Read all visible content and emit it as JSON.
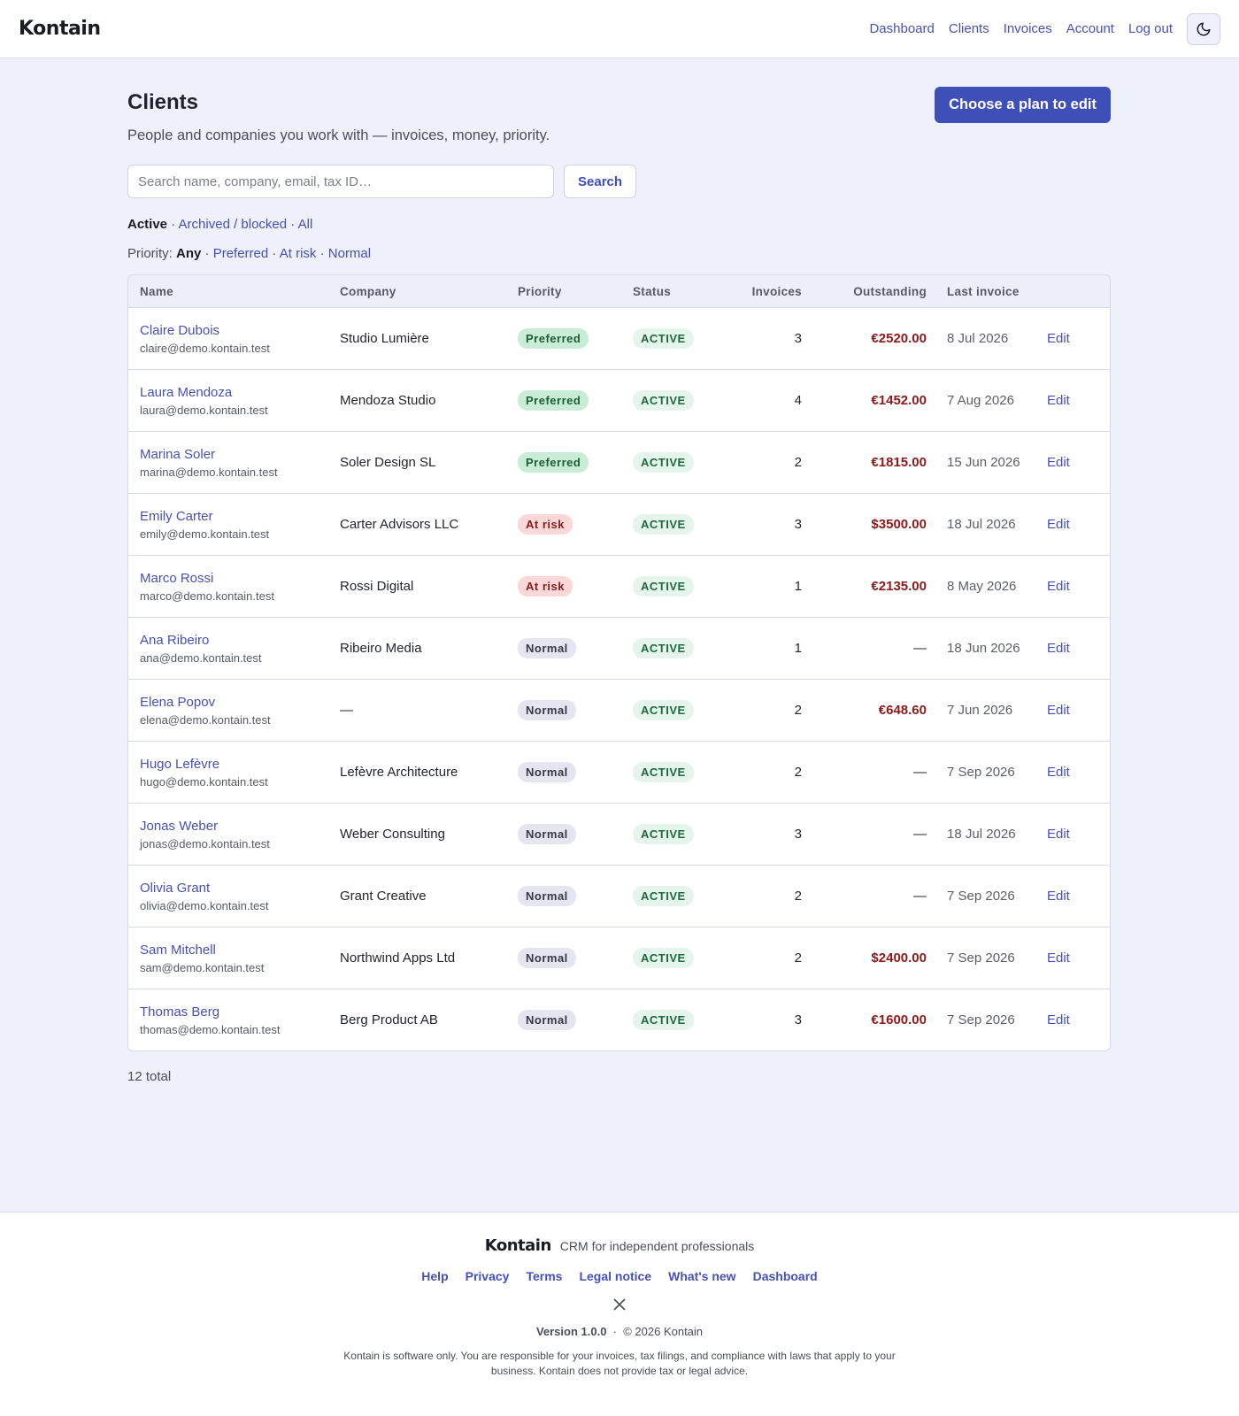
{
  "header": {
    "brand": "Kontain",
    "nav": [
      "Dashboard",
      "Clients",
      "Invoices",
      "Account",
      "Log out"
    ]
  },
  "page": {
    "title": "Clients",
    "subtitle": "People and companies you work with — invoices, money, priority.",
    "cta": "Choose a plan to edit",
    "search_placeholder": "Search name, company, email, tax ID…",
    "search_button": "Search",
    "status_filters": [
      "Active",
      "Archived / blocked",
      "All"
    ],
    "priority_label": "Priority:",
    "priority_filters": [
      "Any",
      "Preferred",
      "At risk",
      "Normal"
    ]
  },
  "table": {
    "columns": [
      "Name",
      "Company",
      "Priority",
      "Status",
      "Invoices",
      "Outstanding",
      "Last invoice"
    ],
    "rows": [
      {
        "name": "Claire Dubois",
        "email": "claire@demo.kontain.test",
        "company": "Studio Lumière",
        "priority": "Preferred",
        "status": "ACTIVE",
        "invoices": 3,
        "outstanding": "€2520.00",
        "last_invoice": "8 Jul 2026",
        "action": "Edit"
      },
      {
        "name": "Laura Mendoza",
        "email": "laura@demo.kontain.test",
        "company": "Mendoza Studio",
        "priority": "Preferred",
        "status": "ACTIVE",
        "invoices": 4,
        "outstanding": "€1452.00",
        "last_invoice": "7 Aug 2026",
        "action": "Edit"
      },
      {
        "name": "Marina Soler",
        "email": "marina@demo.kontain.test",
        "company": "Soler Design SL",
        "priority": "Preferred",
        "status": "ACTIVE",
        "invoices": 2,
        "outstanding": "€1815.00",
        "last_invoice": "15 Jun 2026",
        "action": "Edit"
      },
      {
        "name": "Emily Carter",
        "email": "emily@demo.kontain.test",
        "company": "Carter Advisors LLC",
        "priority": "At risk",
        "status": "ACTIVE",
        "invoices": 3,
        "outstanding": "$3500.00",
        "last_invoice": "18 Jul 2026",
        "action": "Edit"
      },
      {
        "name": "Marco Rossi",
        "email": "marco@demo.kontain.test",
        "company": "Rossi Digital",
        "priority": "At risk",
        "status": "ACTIVE",
        "invoices": 1,
        "outstanding": "€2135.00",
        "last_invoice": "8 May 2026",
        "action": "Edit"
      },
      {
        "name": "Ana Ribeiro",
        "email": "ana@demo.kontain.test",
        "company": "Ribeiro Media",
        "priority": "Normal",
        "status": "ACTIVE",
        "invoices": 1,
        "outstanding": "—",
        "last_invoice": "18 Jun 2026",
        "action": "Edit"
      },
      {
        "name": "Elena Popov",
        "email": "elena@demo.kontain.test",
        "company": "—",
        "priority": "Normal",
        "status": "ACTIVE",
        "invoices": 2,
        "outstanding": "€648.60",
        "last_invoice": "7 Jun 2026",
        "action": "Edit"
      },
      {
        "name": "Hugo Lefèvre",
        "email": "hugo@demo.kontain.test",
        "company": "Lefèvre Architecture",
        "priority": "Normal",
        "status": "ACTIVE",
        "invoices": 2,
        "outstanding": "—",
        "last_invoice": "7 Sep 2026",
        "action": "Edit"
      },
      {
        "name": "Jonas Weber",
        "email": "jonas@demo.kontain.test",
        "company": "Weber Consulting",
        "priority": "Normal",
        "status": "ACTIVE",
        "invoices": 3,
        "outstanding": "—",
        "last_invoice": "18 Jul 2026",
        "action": "Edit"
      },
      {
        "name": "Olivia Grant",
        "email": "olivia@demo.kontain.test",
        "company": "Grant Creative",
        "priority": "Normal",
        "status": "ACTIVE",
        "invoices": 2,
        "outstanding": "—",
        "last_invoice": "7 Sep 2026",
        "action": "Edit"
      },
      {
        "name": "Sam Mitchell",
        "email": "sam@demo.kontain.test",
        "company": "Northwind Apps Ltd",
        "priority": "Normal",
        "status": "ACTIVE",
        "invoices": 2,
        "outstanding": "$2400.00",
        "last_invoice": "7 Sep 2026",
        "action": "Edit"
      },
      {
        "name": "Thomas Berg",
        "email": "thomas@demo.kontain.test",
        "company": "Berg Product AB",
        "priority": "Normal",
        "status": "ACTIVE",
        "invoices": 3,
        "outstanding": "€1600.00",
        "last_invoice": "7 Sep 2026",
        "action": "Edit"
      }
    ]
  },
  "total": "12 total",
  "footer": {
    "brand": "Kontain",
    "tagline": "CRM for independent professionals",
    "links": [
      "Help",
      "Privacy",
      "Terms",
      "Legal notice",
      "What's new",
      "Dashboard"
    ],
    "version": "Version 1.0.0",
    "copyright": "© 2026 Kontain",
    "disclaimer": "Kontain is software only. You are responsible for your invoices, tax filings, and compliance with laws that apply to your business. Kontain does not provide tax or legal advice."
  }
}
